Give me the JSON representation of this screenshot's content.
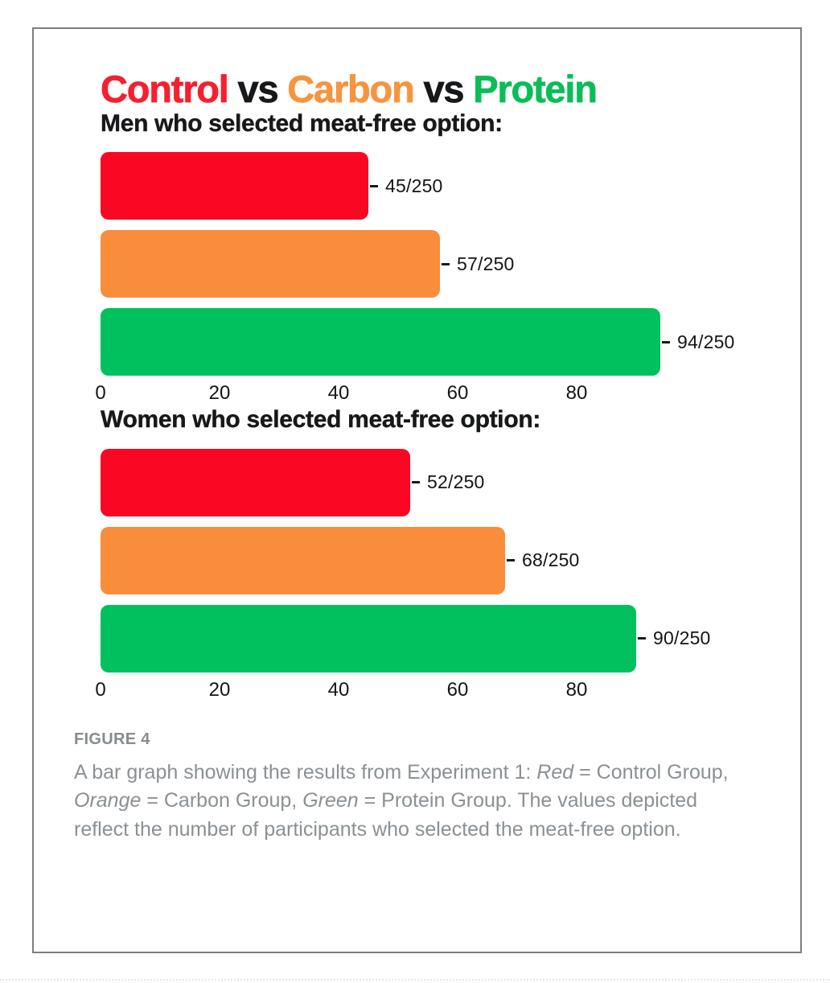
{
  "page": {
    "background": "#ffffff",
    "panel_border_color": "#7d7d7d"
  },
  "title": {
    "parts": [
      {
        "text": "Control",
        "color": "#f5202f"
      },
      {
        "text": " vs ",
        "color": "#17181a"
      },
      {
        "text": "Carbon",
        "color": "#f79440"
      },
      {
        "text": " vs ",
        "color": "#17181a"
      },
      {
        "text": "Protein",
        "color": "#0abd57"
      }
    ]
  },
  "chart_data": {
    "type": "bar",
    "orientation": "horizontal",
    "title": "Control vs Carbon vs Protein",
    "x_ticks": [
      0,
      20,
      40,
      60,
      80
    ],
    "xlim": [
      0,
      97
    ],
    "grid": false,
    "legend_position": "none",
    "denominator": 250,
    "series_legend": [
      {
        "color_name": "Red",
        "hex": "#fa0723",
        "group": "Control Group"
      },
      {
        "color_name": "Orange",
        "hex": "#f98d3c",
        "group": "Carbon Group"
      },
      {
        "color_name": "Green",
        "hex": "#00c15e",
        "group": "Protein Group"
      }
    ],
    "charts": [
      {
        "title": "Men who selected meat-free option:",
        "bars": [
          {
            "group": "Control",
            "value": 45,
            "total": 250,
            "label": "45/250",
            "color": "#fa0723"
          },
          {
            "group": "Carbon",
            "value": 57,
            "total": 250,
            "label": "57/250",
            "color": "#f98d3c"
          },
          {
            "group": "Protein",
            "value": 94,
            "total": 250,
            "label": "94/250",
            "color": "#00c15e"
          }
        ]
      },
      {
        "title": "Women who selected meat-free option:",
        "bars": [
          {
            "group": "Control",
            "value": 52,
            "total": 250,
            "label": "52/250",
            "color": "#fa0723"
          },
          {
            "group": "Carbon",
            "value": 68,
            "total": 250,
            "label": "68/250",
            "color": "#f98d3c"
          },
          {
            "group": "Protein",
            "value": 90,
            "total": 250,
            "label": "90/250",
            "color": "#00c15e"
          }
        ]
      }
    ]
  },
  "caption": {
    "label": "FIGURE 4",
    "parts": [
      "A bar graph showing the results from Experiment 1: ",
      "Red",
      " = Control Group, ",
      "Orange",
      " = Carbon Group, ",
      "Green",
      " = Protein Group. The values depicted reflect the number of participants who selected the meat-free option."
    ]
  }
}
